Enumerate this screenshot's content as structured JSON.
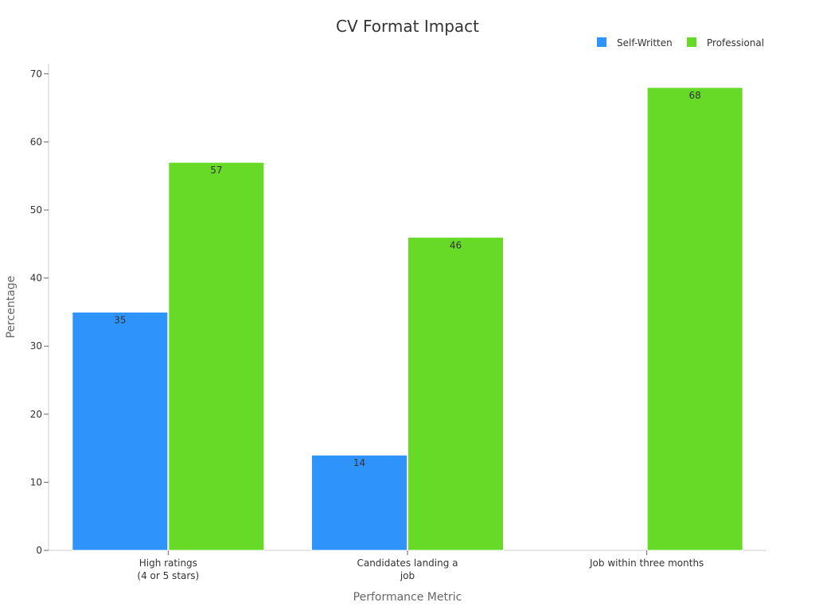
{
  "chart_data": {
    "type": "bar",
    "title": "CV Format Impact",
    "xlabel": "Performance Metric",
    "ylabel": "Percentage",
    "categories": [
      [
        "High ratings",
        "(4 or 5 stars)"
      ],
      [
        "Candidates landing a",
        "job"
      ],
      [
        "Job within three months"
      ]
    ],
    "series": [
      {
        "name": "Self-Written",
        "color": "#2E93FA",
        "values": [
          35,
          14,
          null
        ]
      },
      {
        "name": "Professional",
        "color": "#66DA26",
        "values": [
          57,
          46,
          68
        ]
      }
    ],
    "ylim": [
      0,
      71.5
    ],
    "yticks": [
      0,
      10,
      20,
      30,
      40,
      50,
      60,
      70
    ],
    "grid": false,
    "legend_position": "top-right",
    "data_labels": true
  }
}
